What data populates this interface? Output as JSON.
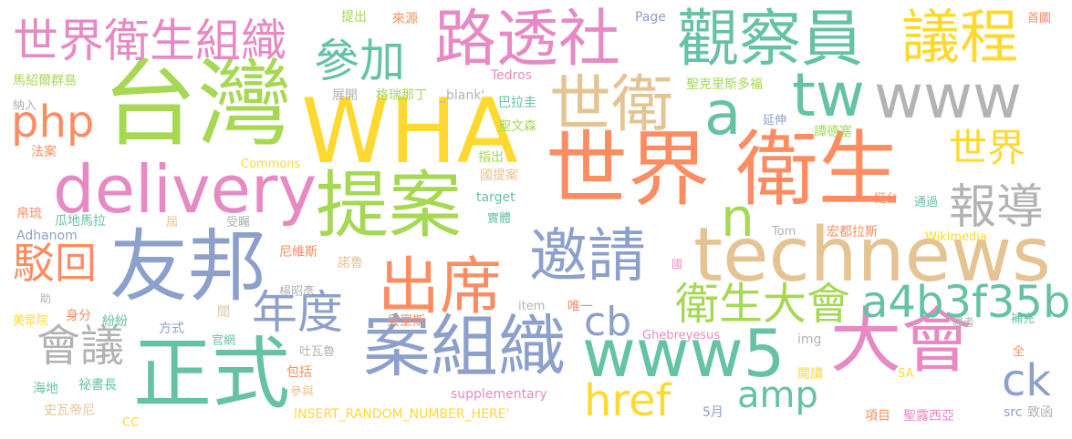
{
  "words": [
    {
      "id": "w_taiwan",
      "text": "台灣",
      "color": "#a6d854"
    },
    {
      "id": "w_wha",
      "text": "WHA",
      "color": "#ffd92f"
    },
    {
      "id": "w_shijie_weisheng",
      "text": "世界 衛生",
      "color": "#fc8d62"
    },
    {
      "id": "w_youbang",
      "text": "友邦",
      "color": "#8da0cb"
    },
    {
      "id": "w_technews",
      "text": "technews",
      "color": "#e5c494"
    },
    {
      "id": "w_delivery",
      "text": "delivery",
      "color": "#e78ac3"
    },
    {
      "id": "w_zhengshi",
      "text": "正式",
      "color": "#66c2a5"
    },
    {
      "id": "w_tian_an",
      "text": "提案",
      "color": "#a6d854"
    },
    {
      "id": "w_an_zuzhi",
      "text": "案組織",
      "color": "#8da0cb"
    },
    {
      "id": "w_dahui",
      "text": "大會",
      "color": "#e78ac3"
    },
    {
      "id": "w_www5",
      "text": "www5",
      "color": "#66c2a5"
    },
    {
      "id": "w_chuxi",
      "text": "出席",
      "color": "#fc8d62"
    },
    {
      "id": "w_yaoqing",
      "text": "邀請",
      "color": "#8da0cb"
    },
    {
      "id": "w_lutoushe",
      "text": "路透社",
      "color": "#e78ac3"
    },
    {
      "id": "w_guanchayuan",
      "text": "觀察員",
      "color": "#66c2a5"
    },
    {
      "id": "w_yicheng",
      "text": "議程",
      "color": "#ffd92f"
    },
    {
      "id": "w_www",
      "text": "www",
      "color": "#b3b3b3"
    },
    {
      "id": "w_shiwei",
      "text": "世衛",
      "color": "#e5c494"
    },
    {
      "id": "w_tw",
      "text": "tw",
      "color": "#66c2a5"
    },
    {
      "id": "w_a",
      "text": "a",
      "color": "#66c2a5"
    },
    {
      "id": "w_php",
      "text": "php",
      "color": "#fc8d62"
    },
    {
      "id": "w_sjwszz",
      "text": "世界衛生組織",
      "color": "#e78ac3"
    },
    {
      "id": "w_canjia",
      "text": "參加",
      "color": "#66c2a5"
    },
    {
      "id": "w_baodao",
      "text": "報導",
      "color": "#b3b3b3"
    },
    {
      "id": "w_shijie",
      "text": "世界",
      "color": "#ffd92f"
    },
    {
      "id": "w_n",
      "text": "n",
      "color": "#a6d854"
    },
    {
      "id": "w_bohui",
      "text": "駁回",
      "color": "#fc8d62"
    },
    {
      "id": "w_niandu",
      "text": "年度",
      "color": "#8da0cb"
    },
    {
      "id": "w_huiyi",
      "text": "會議",
      "color": "#b3b3b3"
    },
    {
      "id": "w_wsdh",
      "text": "衛生大會",
      "color": "#a6d854"
    },
    {
      "id": "w_a4b3",
      "text": "a4b3f35b",
      "color": "#66c2a5"
    },
    {
      "id": "w_cb",
      "text": "cb",
      "color": "#8da0cb"
    },
    {
      "id": "w_href",
      "text": "href",
      "color": "#ffd92f"
    },
    {
      "id": "w_amp",
      "text": "amp",
      "color": "#66c2a5"
    },
    {
      "id": "w_ck",
      "text": "ck",
      "color": "#8da0cb"
    },
    {
      "id": "w_small_mashaoer",
      "text": "馬紹爾群島",
      "color": "#a6d854"
    },
    {
      "id": "w_small_naru",
      "text": "納入",
      "color": "#b3b3b3"
    },
    {
      "id": "w_small_fa_an",
      "text": "法案",
      "color": "#fc8d62"
    },
    {
      "id": "w_small_zhankai",
      "text": "展開",
      "color": "#b3b3b3"
    },
    {
      "id": "w_small_gerui",
      "text": "格瑞那丁",
      "color": "#a6d854"
    },
    {
      "id": "w_small_blank",
      "text": "_blank'",
      "color": "#b3b3b3"
    },
    {
      "id": "w_small_tichu",
      "text": "提出",
      "color": "#a6d854"
    },
    {
      "id": "w_small_laiyuan",
      "text": "來源",
      "color": "#fc8d62"
    },
    {
      "id": "w_small_tedros",
      "text": "Tedros",
      "color": "#e78ac3"
    },
    {
      "id": "w_small_page",
      "text": "Page",
      "color": "#8da0cb"
    },
    {
      "id": "w_small_shouye",
      "text": "首圖",
      "color": "#fc8d62"
    },
    {
      "id": "w_small_balagui",
      "text": "巴拉圭",
      "color": "#66c2a5"
    },
    {
      "id": "w_small_skstdf",
      "text": "聖克里斯多福",
      "color": "#a6d854"
    },
    {
      "id": "w_small_swsen",
      "text": "聖文森",
      "color": "#a6d854"
    },
    {
      "id": "w_small_yanshen",
      "text": "延伸",
      "color": "#8da0cb"
    },
    {
      "id": "w_small_tandesai",
      "text": "譚德塞",
      "color": "#a6d854"
    },
    {
      "id": "w_small_commons",
      "text": "Commons",
      "color": "#ffd92f"
    },
    {
      "id": "w_small_zhichu",
      "text": "指出",
      "color": "#a6d854"
    },
    {
      "id": "w_small_guotian",
      "text": "國提案",
      "color": "#e5c494"
    },
    {
      "id": "w_small_target",
      "text": "target",
      "color": "#66c2a5"
    },
    {
      "id": "w_small_tingtai",
      "text": "挺台",
      "color": "#fc8d62"
    },
    {
      "id": "w_small_tongguo",
      "text": "通過",
      "color": "#66c2a5"
    },
    {
      "id": "w_small_bolu",
      "text": "帛琉",
      "color": "#fc8d62"
    },
    {
      "id": "w_small_gdml",
      "text": "瓜地馬拉",
      "color": "#66c2a5"
    },
    {
      "id": "w_small_shiti",
      "text": "實體",
      "color": "#66c2a5"
    },
    {
      "id": "w_small_jie",
      "text": "屆",
      "color": "#e5c494"
    },
    {
      "id": "w_small_shouzhu",
      "text": "受矚",
      "color": "#b3b3b3"
    },
    {
      "id": "w_small_tom",
      "text": "Tom",
      "color": "#b3b3b3"
    },
    {
      "id": "w_small_hongdu",
      "text": "宏都拉斯",
      "color": "#fc8d62"
    },
    {
      "id": "w_small_adhanom",
      "text": "Adhanom",
      "color": "#8da0cb"
    },
    {
      "id": "w_small_niweisi",
      "text": "尼維斯",
      "color": "#fc8d62"
    },
    {
      "id": "w_small_wikimedia",
      "text": "Wikimedia",
      "color": "#ffd92f"
    },
    {
      "id": "w_small_nuolu",
      "text": "諾魯",
      "color": "#e5c494"
    },
    {
      "id": "w_small_guo",
      "text": "國",
      "color": "#e78ac3"
    },
    {
      "id": "w_small_zhu",
      "text": "助",
      "color": "#b3b3b3"
    },
    {
      "id": "w_small_yangzhaoyan",
      "text": "楊昭彥",
      "color": "#b3b3b3"
    },
    {
      "id": "w_small_item",
      "text": "item",
      "color": "#b3b3b3"
    },
    {
      "id": "w_small_weiyi",
      "text": "唯一",
      "color": "#fc8d62"
    },
    {
      "id": "w_small_meizhongyuan",
      "text": "美眾院",
      "color": "#ffd92f"
    },
    {
      "id": "w_small_shenfen",
      "text": "身分",
      "color": "#fc8d62"
    },
    {
      "id": "w_small_fenfen",
      "text": "紛紛",
      "color": "#66c2a5"
    },
    {
      "id": "w_small_jian",
      "text": "間",
      "color": "#e5c494"
    },
    {
      "id": "w_small_beilisi",
      "text": "貝里斯",
      "color": "#fc8d62"
    },
    {
      "id": "w_small_buchong",
      "text": "補充",
      "color": "#66c2a5"
    },
    {
      "id": "w_small_fangshi",
      "text": "方式",
      "color": "#8da0cb"
    },
    {
      "id": "w_small_guanwang",
      "text": "官網",
      "color": "#66c2a5"
    },
    {
      "id": "w_small_tuwalu",
      "text": "吐瓦魯",
      "color": "#b3b3b3"
    },
    {
      "id": "w_small_img",
      "text": "img",
      "color": "#b3b3b3"
    },
    {
      "id": "w_small_ghebreyesus",
      "text": "Ghebreyesus",
      "color": "#e78ac3"
    },
    {
      "id": "w_small_yizhe",
      "text": "譯者",
      "color": "#b3b3b3"
    },
    {
      "id": "w_small_quan",
      "text": "全",
      "color": "#fc8d62"
    },
    {
      "id": "w_small_haidi",
      "text": "海地",
      "color": "#66c2a5"
    },
    {
      "id": "w_small_mishuzhang",
      "text": "祕書長",
      "color": "#66c2a5"
    },
    {
      "id": "w_small_baokuo",
      "text": "包括",
      "color": "#fc8d62"
    },
    {
      "id": "w_small_canyu",
      "text": "參與",
      "color": "#e5c494"
    },
    {
      "id": "w_small_supplementary",
      "text": "supplementary",
      "color": "#e78ac3"
    },
    {
      "id": "w_small_yuedu",
      "text": "閱讀",
      "color": "#ffd92f"
    },
    {
      "id": "w_small_sa",
      "text": "SA",
      "color": "#ffd92f"
    },
    {
      "id": "w_small_shiwadini",
      "text": "史瓦帝尼",
      "color": "#e5c494"
    },
    {
      "id": "w_small_insert",
      "text": "INSERT_RANDOM_NUMBER_HERE'",
      "color": "#ffd92f"
    },
    {
      "id": "w_small_5yue",
      "text": "5月",
      "color": "#8da0cb"
    },
    {
      "id": "w_small_xiangmu",
      "text": "項目",
      "color": "#fc8d62"
    },
    {
      "id": "w_small_shenglu",
      "text": "聖露西亞",
      "color": "#e78ac3"
    },
    {
      "id": "w_small_src",
      "text": "src",
      "color": "#8da0cb"
    },
    {
      "id": "w_small_zhihan",
      "text": "致函",
      "color": "#b3b3b3"
    },
    {
      "id": "w_small_cc",
      "text": "CC",
      "color": "#ffd92f"
    }
  ]
}
